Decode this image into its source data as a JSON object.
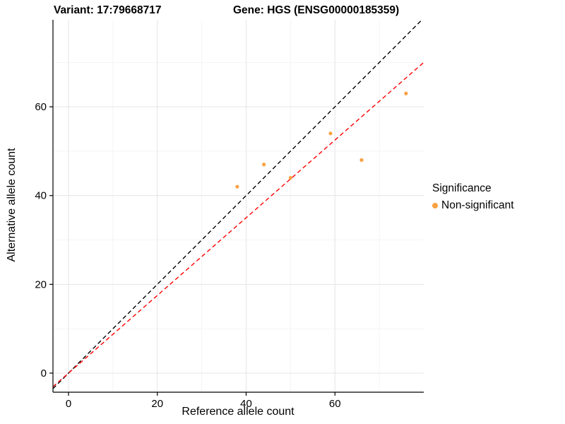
{
  "titles": {
    "left": "Variant: 17:79668717",
    "right": "Gene: HGS (ENSG00000185359)"
  },
  "legend": {
    "title": "Significance",
    "items": [
      {
        "label": "Non-significant",
        "color": "#F9A242"
      }
    ]
  },
  "chart_data": {
    "type": "scatter",
    "title": "Variant: 17:79668717  Gene: HGS (ENSG00000185359)",
    "xlabel": "Reference allele count",
    "ylabel": "Alternative allele count",
    "xlim": [
      -3.5,
      80
    ],
    "ylim": [
      -4.3,
      79.6
    ],
    "x_ticks": [
      0,
      20,
      40,
      60
    ],
    "y_ticks": [
      0,
      20,
      40,
      60
    ],
    "x_minor_ticks": [
      10,
      30,
      50,
      70
    ],
    "y_minor_ticks": [
      10,
      30,
      50,
      70
    ],
    "grid": true,
    "grid_major_color": "#E4E4E4",
    "grid_minor_color": "#F2F2F2",
    "point_color": "#F9A242",
    "point_radius": 2.6,
    "points": [
      {
        "x": 38,
        "y": 42,
        "significance": "Non-significant"
      },
      {
        "x": 44,
        "y": 47,
        "significance": "Non-significant"
      },
      {
        "x": 50,
        "y": 44,
        "significance": "Non-significant"
      },
      {
        "x": 59,
        "y": 54,
        "significance": "Non-significant"
      },
      {
        "x": 66,
        "y": 48,
        "significance": "Non-significant"
      },
      {
        "x": 76,
        "y": 63,
        "significance": "Non-significant"
      }
    ],
    "lines": [
      {
        "name": "identity-line",
        "slope": 1.0,
        "intercept": 0,
        "color": "#000000",
        "dash": "6,4"
      },
      {
        "name": "fit-line",
        "slope": 0.875,
        "intercept": 0,
        "color": "#FF0000",
        "dash": "6,4"
      }
    ],
    "legend_position": "right",
    "legend_title": "Significance",
    "legend_entries": [
      "Non-significant"
    ]
  }
}
